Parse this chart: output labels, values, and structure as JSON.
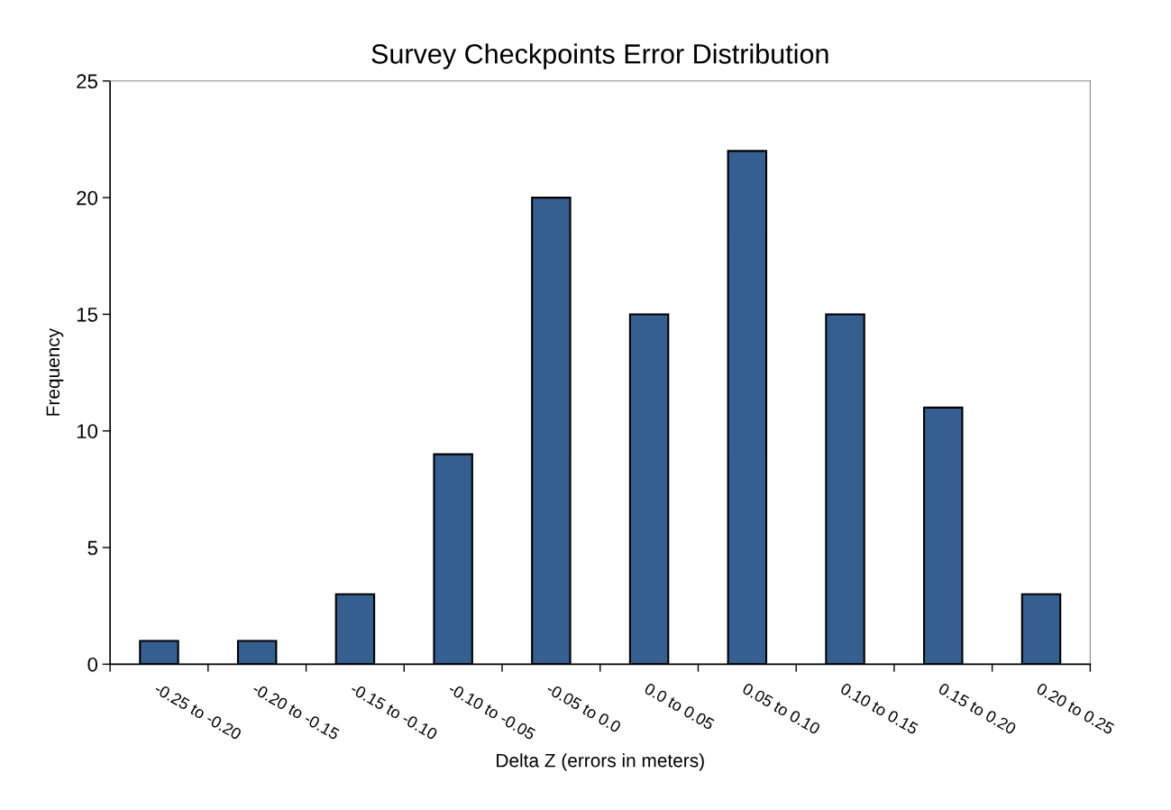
{
  "chart_data": {
    "type": "bar",
    "title": "Survey Checkpoints Error Distribution",
    "xlabel": "Delta Z (errors in meters)",
    "ylabel": "Frequency",
    "categories": [
      "-0.25 to -0.20",
      "-0.20 to -0.15",
      "-0.15 to -0.10",
      "-0.10 to -0.05",
      "-0.05 to 0.0",
      "0.0 to 0.05",
      "0.05 to 0.10",
      "0.10 to 0.15",
      "0.15 to 0.20",
      "0.20 to 0.25"
    ],
    "values": [
      1,
      1,
      3,
      9,
      20,
      15,
      22,
      15,
      11,
      3
    ],
    "color": "#355f91",
    "ylim": [
      0,
      25
    ],
    "yticks": [
      0,
      5,
      10,
      15,
      20,
      25
    ],
    "grid": false,
    "legend": false
  }
}
